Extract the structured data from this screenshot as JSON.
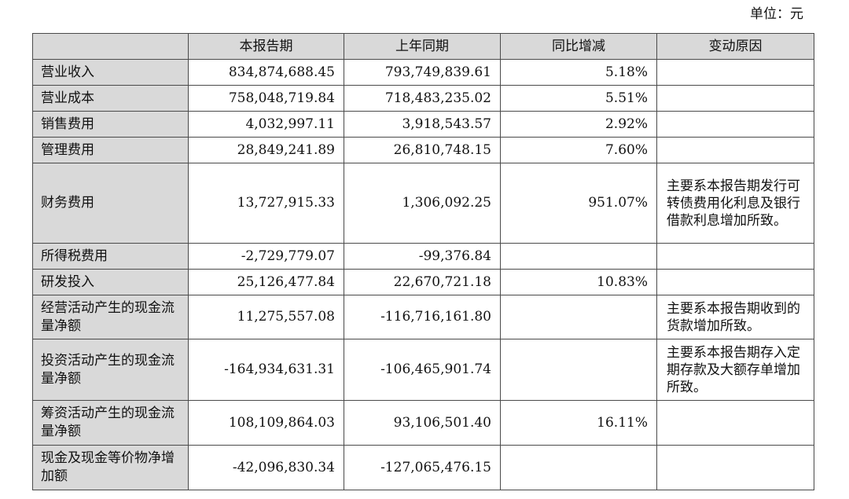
{
  "unit_label": "单位：元",
  "table": {
    "headers": [
      "",
      "本报告期",
      "上年同期",
      "同比增减",
      "变动原因"
    ],
    "rows": [
      {
        "item": "营业收入",
        "current": "834,874,688.45",
        "prior": "793,749,839.61",
        "change": "5.18%",
        "reason": ""
      },
      {
        "item": "营业成本",
        "current": "758,048,719.84",
        "prior": "718,483,235.02",
        "change": "5.51%",
        "reason": ""
      },
      {
        "item": "销售费用",
        "current": "4,032,997.11",
        "prior": "3,918,543.57",
        "change": "2.92%",
        "reason": ""
      },
      {
        "item": "管理费用",
        "current": "28,849,241.89",
        "prior": "26,810,748.15",
        "change": "7.60%",
        "reason": ""
      },
      {
        "item": "财务费用",
        "current": "13,727,915.33",
        "prior": "1,306,092.25",
        "change": "951.07%",
        "reason": "主要系本报告期发行可转债费用化利息及银行借款利息增加所致。"
      },
      {
        "item": "所得税费用",
        "current": "-2,729,779.07",
        "prior": "-99,376.84",
        "change": "",
        "reason": ""
      },
      {
        "item": "研发投入",
        "current": "25,126,477.84",
        "prior": "22,670,721.18",
        "change": "10.83%",
        "reason": ""
      },
      {
        "item": "经营活动产生的现金流量净额",
        "current": "11,275,557.08",
        "prior": "-116,716,161.80",
        "change": "",
        "reason": "主要系本报告期收到的货款增加所致。"
      },
      {
        "item": "投资活动产生的现金流量净额",
        "current": "-164,934,631.31",
        "prior": "-106,465,901.74",
        "change": "",
        "reason": "主要系本报告期存入定期存款及大额存单增加所致。"
      },
      {
        "item": "筹资活动产生的现金流量净额",
        "current": "108,109,864.03",
        "prior": "93,106,501.40",
        "change": "16.11%",
        "reason": ""
      },
      {
        "item": "现金及现金等价物净增加额",
        "current": "-42,096,830.34",
        "prior": "-127,065,476.15",
        "change": "",
        "reason": ""
      }
    ]
  }
}
